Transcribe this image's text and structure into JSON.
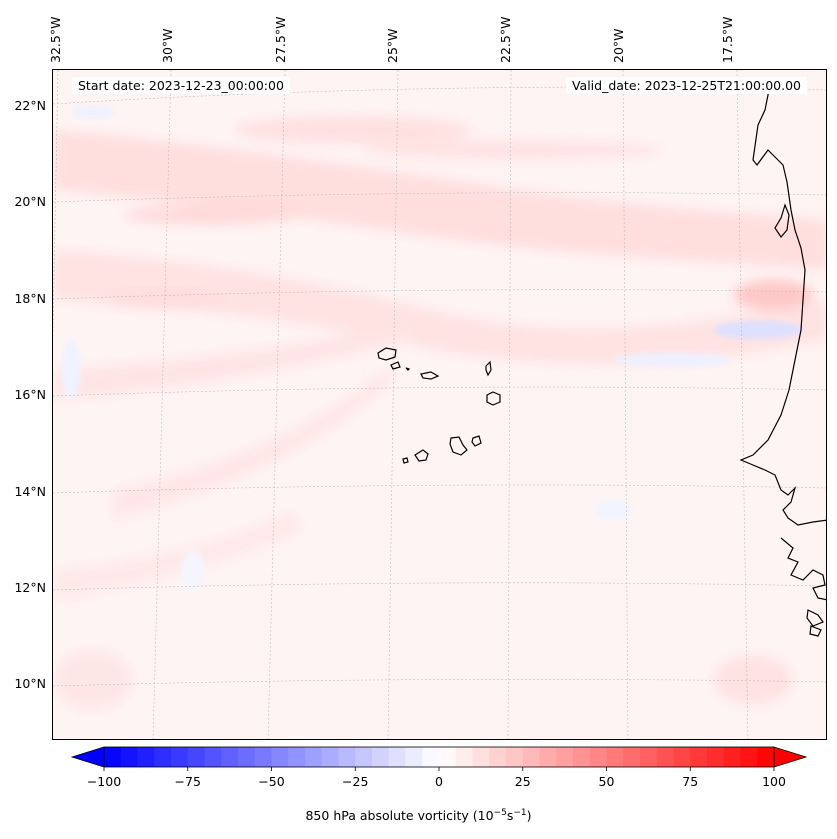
{
  "map": {
    "title_left": "Start date: 2023-12-23_00:00:00",
    "title_right": "Valid_date: 2023-12-25T21:00:00.00",
    "lon_labels": [
      "32.5°W",
      "30°W",
      "27.5°W",
      "25°W",
      "22.5°W",
      "20°W",
      "17.5°W"
    ],
    "lat_labels": [
      "22°N",
      "20°N",
      "18°N",
      "16°N",
      "14°N",
      "12°N",
      "10°N"
    ],
    "coastline_color": "#000000",
    "gridline_color": "#bbbbbb"
  },
  "colorbar": {
    "label_prefix": "850 hPa absolute vorticity (10",
    "label_exp1": "−5",
    "label_mid": "s",
    "label_exp2": "−1",
    "label_suffix": ")",
    "ticks": [
      "−100",
      "−75",
      "−50",
      "−25",
      "0",
      "25",
      "50",
      "75",
      "100"
    ],
    "min": -100,
    "max": 100,
    "colormap": "bwr",
    "low_color": "#0000ff",
    "mid_color": "#ffffff",
    "high_color": "#ff0000"
  }
}
